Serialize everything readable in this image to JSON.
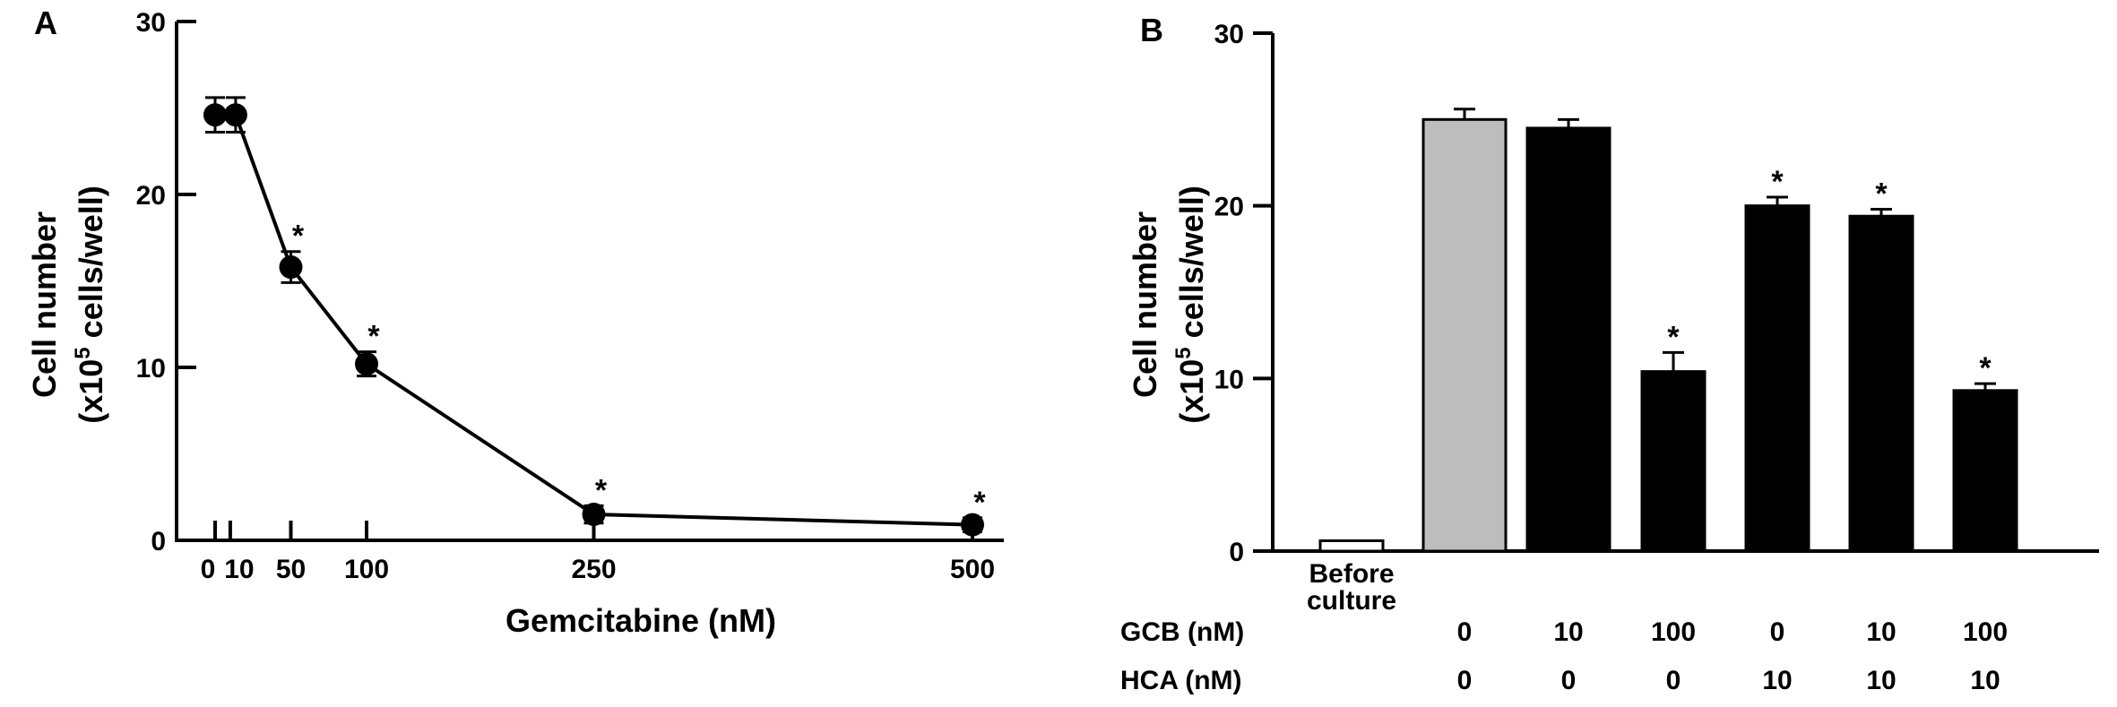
{
  "chart_data": [
    {
      "panel": "A",
      "type": "line",
      "xlabel": "Gemcitabine (nM)",
      "ylabel": "Cell number",
      "ylabel_line2_prefix": "(x10",
      "ylabel_line2_sup": "5",
      "ylabel_line2_suffix": " cells/well)",
      "ylim": [
        0,
        30
      ],
      "xlim": [
        0,
        500
      ],
      "yticks": [
        "0",
        "10",
        "20",
        "30"
      ],
      "xtick_values": [
        0,
        10,
        50,
        100,
        250,
        500
      ],
      "xtick_labels": [
        "0",
        "10",
        "50",
        "100",
        "250",
        "500"
      ],
      "series": [
        {
          "x": [
            0,
            10,
            50,
            100,
            250,
            500
          ],
          "y": [
            24.6,
            24.6,
            15.8,
            10.2,
            1.5,
            0.9
          ],
          "err": [
            1.0,
            1.0,
            0.9,
            0.7,
            0.5,
            0.4
          ],
          "significant": [
            false,
            false,
            true,
            true,
            true,
            true
          ]
        }
      ],
      "star": "*"
    },
    {
      "panel": "B",
      "type": "bar",
      "ylabel": "Cell number",
      "ylabel_line2_prefix": "(x10",
      "ylabel_line2_sup": "5",
      "ylabel_line2_suffix": " cells/well)",
      "ylim": [
        0,
        30
      ],
      "yticks": [
        "0",
        "10",
        "20",
        "30"
      ],
      "before_label_line1": "Before",
      "before_label_line2": "culture",
      "values": [
        0.6,
        25.0,
        24.5,
        10.4,
        20.0,
        19.4,
        9.3
      ],
      "err": [
        0,
        0.6,
        0.5,
        1.1,
        0.5,
        0.4,
        0.4
      ],
      "fills": [
        "#ffffff",
        "#bdbdbd",
        "#000000",
        "#000000",
        "#000000",
        "#000000",
        "#000000"
      ],
      "significant": [
        false,
        false,
        false,
        true,
        true,
        true,
        true
      ],
      "gcb_label": "GCB (nM)",
      "gcb_values": [
        "0",
        "10",
        "100",
        "0",
        "10",
        "100"
      ],
      "hca_label": "HCA (nM)",
      "hca_values": [
        "0",
        "0",
        "0",
        "10",
        "10",
        "10"
      ],
      "star": "*"
    }
  ]
}
